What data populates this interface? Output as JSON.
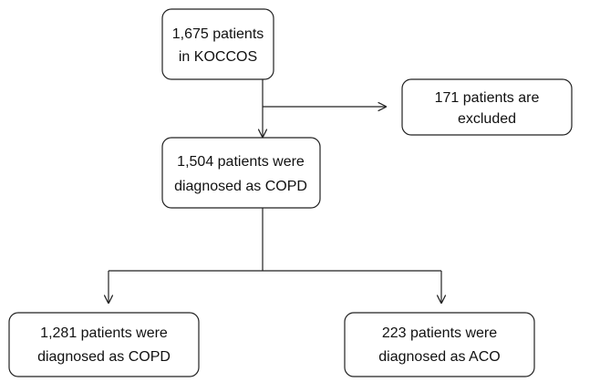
{
  "nodes": [
    {
      "lines": [
        "1,675 patients",
        "in KOCCOS"
      ]
    },
    {
      "lines": [
        "171 patients are",
        "excluded"
      ]
    },
    {
      "lines": [
        "1,504 patients were",
        "diagnosed as COPD"
      ]
    },
    {
      "lines": [
        "1,281 patients were",
        "diagnosed as COPD"
      ]
    },
    {
      "lines": [
        "223 patients were",
        "diagnosed as ACO"
      ]
    }
  ]
}
